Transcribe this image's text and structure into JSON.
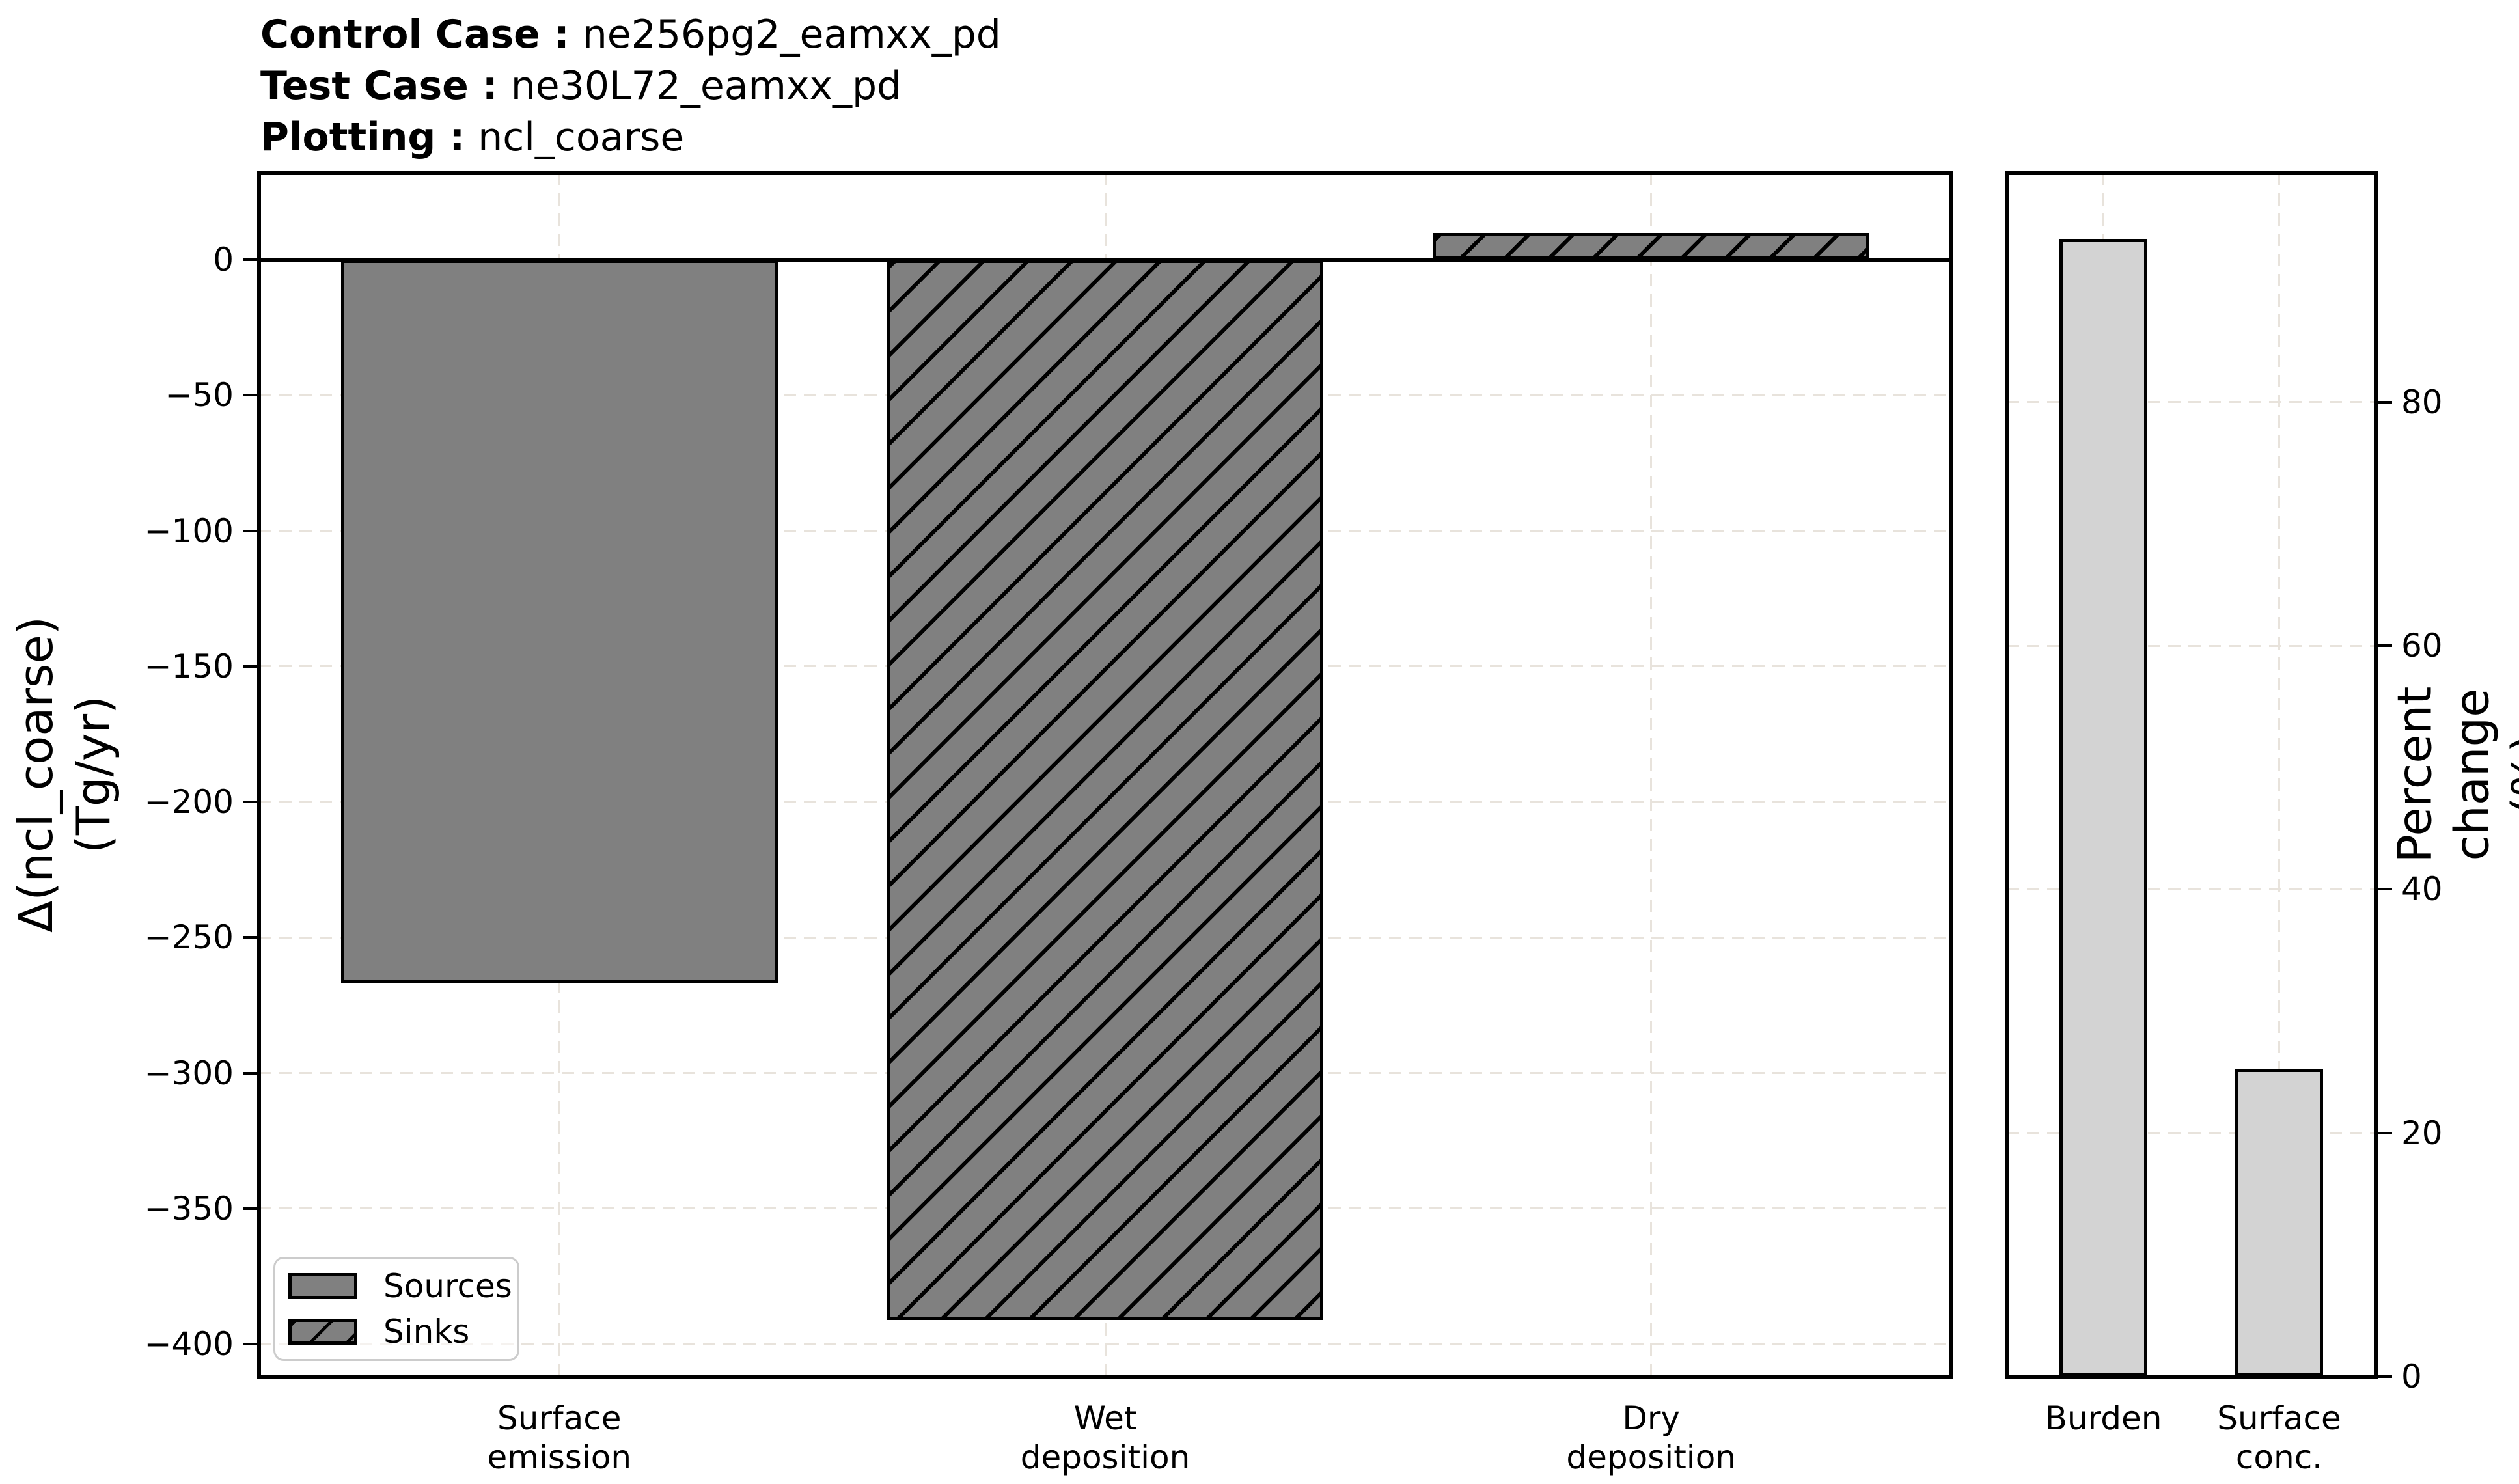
{
  "title": {
    "lines": [
      {
        "label": "Control Case :",
        "value": "ne256pg2_eamxx_pd"
      },
      {
        "label": "Test Case :",
        "value": "ne30L72_eamxx_pd"
      },
      {
        "label": "Plotting :",
        "value": "ncl_coarse"
      }
    ]
  },
  "legend": {
    "items": [
      {
        "label": "Sources",
        "style": "solid"
      },
      {
        "label": "Sinks",
        "style": "hatched"
      }
    ]
  },
  "colors": {
    "bar_gray": "#808080",
    "bar_lightgray": "#d3d3d3",
    "bar_edge": "#000000",
    "grid": "#e8e3dc",
    "legend_border": "#cccccc",
    "text": "#000000",
    "background": "#ffffff"
  },
  "chart_data": [
    {
      "type": "bar",
      "title": "",
      "categories": [
        "Surface\nemission",
        "Wet\ndeposition",
        "Dry\ndeposition"
      ],
      "values": [
        -267,
        -391,
        10
      ],
      "hatched": [
        false,
        true,
        true
      ],
      "bar_color": "#808080",
      "ylabel": "Δ(ncl_coarse)\n(Tg/yr)",
      "xlabel": "",
      "yticks": [
        0,
        -50,
        -100,
        -150,
        -200,
        -250,
        -300,
        -350,
        -400
      ],
      "ylim": [
        -412,
        32
      ],
      "grid": true,
      "zero_line": true,
      "legend_position": "lower left"
    },
    {
      "type": "bar",
      "title": "",
      "categories": [
        "Burden",
        "Surface\nconc."
      ],
      "values": [
        93.4,
        25.3
      ],
      "hatched": [
        false,
        false
      ],
      "bar_color": "#d3d3d3",
      "ylabel": "Percent change (%)",
      "xlabel": "",
      "yticks": [
        0,
        20,
        40,
        60,
        80
      ],
      "ylim": [
        0,
        98.8
      ],
      "grid": true,
      "zero_line": false,
      "legend_position": "none"
    }
  ]
}
